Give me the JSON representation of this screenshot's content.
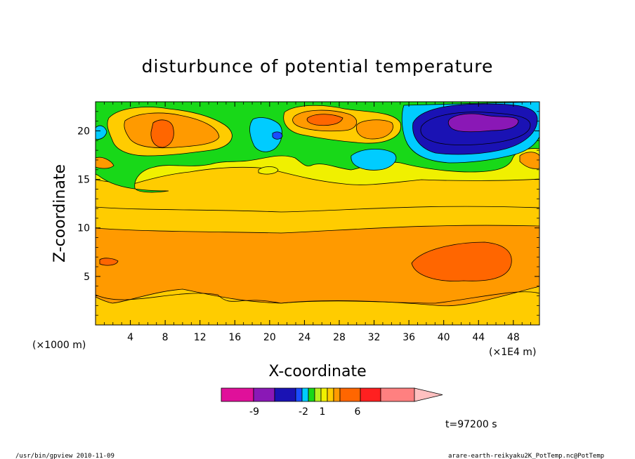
{
  "chart_data": {
    "type": "heatmap",
    "title": "disturbunce of potential temperature",
    "xlabel": "X-coordinate",
    "ylabel": "Z-coordinate",
    "x_multiplier_left": "(×1000 m)",
    "x_multiplier_right": "(×1E4 m)",
    "xlim": [
      0,
      51
    ],
    "ylim": [
      0,
      23
    ],
    "x_ticks": [
      "4",
      "8",
      "12",
      "16",
      "20",
      "24",
      "28",
      "32",
      "36",
      "40",
      "44",
      "48"
    ],
    "y_ticks": [
      "5",
      "10",
      "15",
      "20"
    ],
    "colorbar": {
      "labels": [
        "-9",
        "-2",
        "1",
        "6"
      ],
      "colors": [
        "#e0109a",
        "#8a18b6",
        "#1a12b4",
        "#1a4cff",
        "#00ccff",
        "#18d818",
        "#b8f020",
        "#f0f000",
        "#ffcc00",
        "#ff9a00",
        "#ff6600",
        "#ff2020",
        "#ff8080",
        "#ffc0c0"
      ]
    },
    "time_label": "t=97200 s",
    "footer_left": "/usr/bin/gpview   2010-11-09",
    "footer_right": "arare-earth-reikyaku2K_PotTemp.nc@PotTemp"
  }
}
